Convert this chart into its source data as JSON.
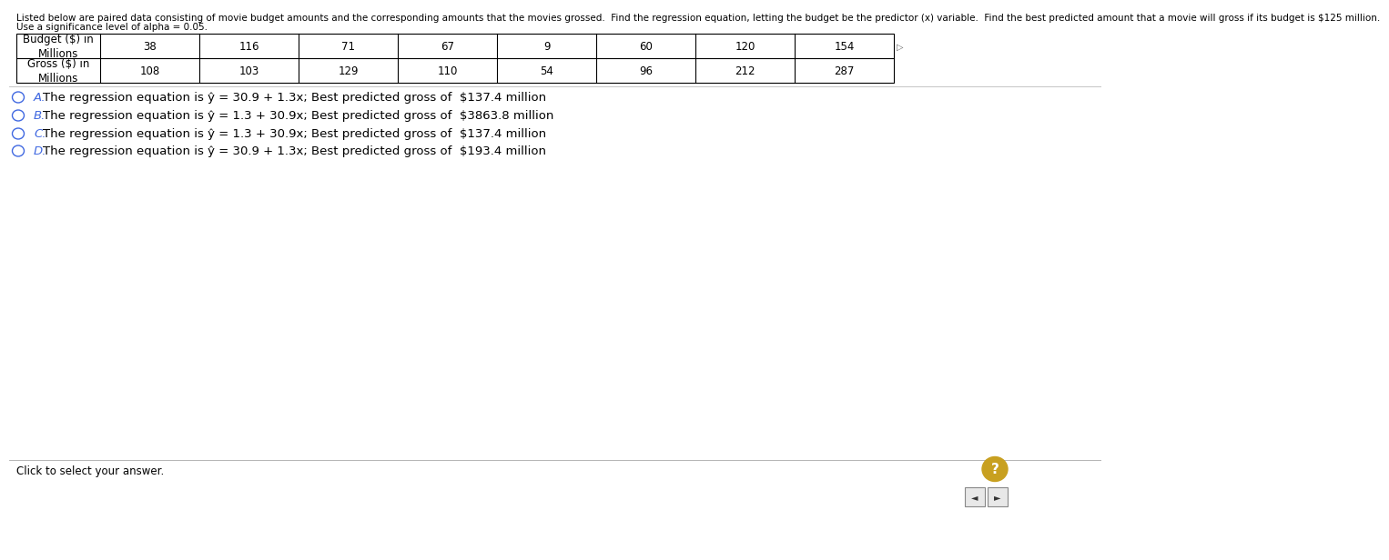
{
  "header_text": "Listed below are paired data consisting of movie budget amounts and the corresponding amounts that the movies grossed.  Find the regression equation, letting the budget be the predictor (x) variable.  Find the best predicted amount that a movie will gross if its budget is $125 million.",
  "sub_text": "Use a significance level of alpha = 0.05.",
  "row1_label": "Budget ($) in\nMillions",
  "row2_label": "Gross ($) in\nMillions",
  "budget_values": [
    38,
    116,
    71,
    67,
    9,
    60,
    120,
    154
  ],
  "gross_values": [
    108,
    103,
    129,
    110,
    54,
    96,
    212,
    287
  ],
  "options": [
    {
      "letter": "A.",
      "text": "The regression equation is ŷ = 30.9 + 1.3x; Best predicted gross of  $137.4 million"
    },
    {
      "letter": "B.",
      "text": "The regression equation is ŷ = 1.3 + 30.9x; Best predicted gross of  $3863.8 million"
    },
    {
      "letter": "C.",
      "text": "The regression equation is ŷ = 1.3 + 30.9x; Best predicted gross of  $137.4 million"
    },
    {
      "letter": "D.",
      "text": "The regression equation is ŷ = 30.9 + 1.3x; Best predicted gross of  $193.4 million"
    }
  ],
  "bottom_text": "Click to select your answer.",
  "bg_color": "#ffffff",
  "table_border_color": "#000000",
  "text_color": "#000000",
  "option_blue": "#4169e1",
  "header_fontsize": 7.5,
  "table_fontsize": 8.5,
  "option_fontsize": 9.5
}
